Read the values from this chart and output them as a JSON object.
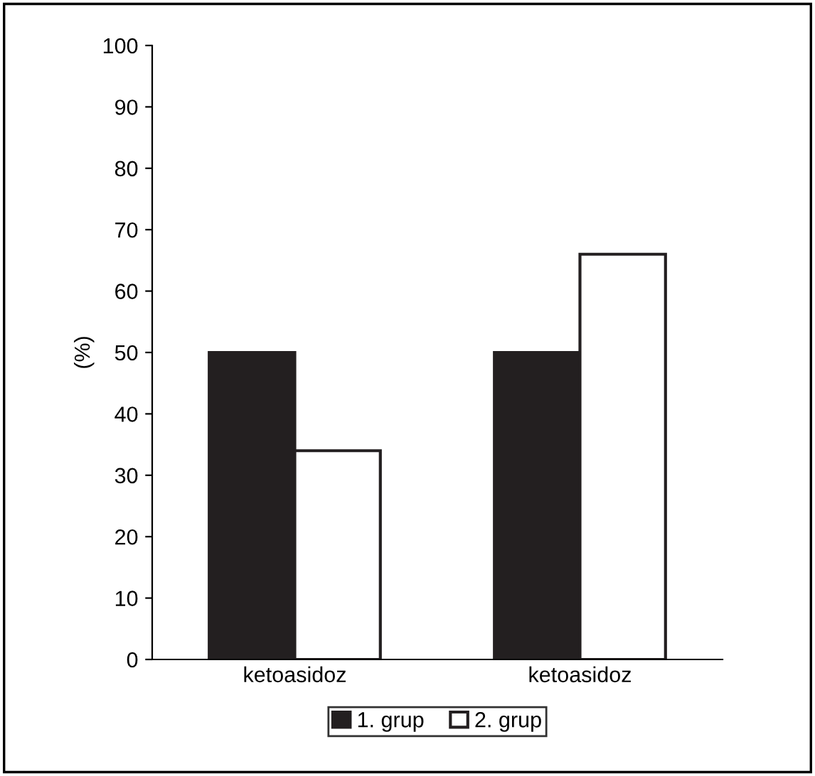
{
  "chart_data": {
    "type": "bar",
    "ylabel": "(%)",
    "categories": [
      "ketoasidoz",
      "ketoasidoz"
    ],
    "series": [
      {
        "name": "1. grup",
        "color": "#231f20",
        "values": [
          50,
          50
        ]
      },
      {
        "name": "2. grup",
        "color": "#ffffff",
        "values": [
          34,
          66
        ]
      }
    ],
    "ylim": [
      0,
      100
    ],
    "yticks": [
      0,
      10,
      20,
      30,
      40,
      50,
      60,
      70,
      80,
      90,
      100
    ],
    "grid": false,
    "legend": "bottom"
  }
}
